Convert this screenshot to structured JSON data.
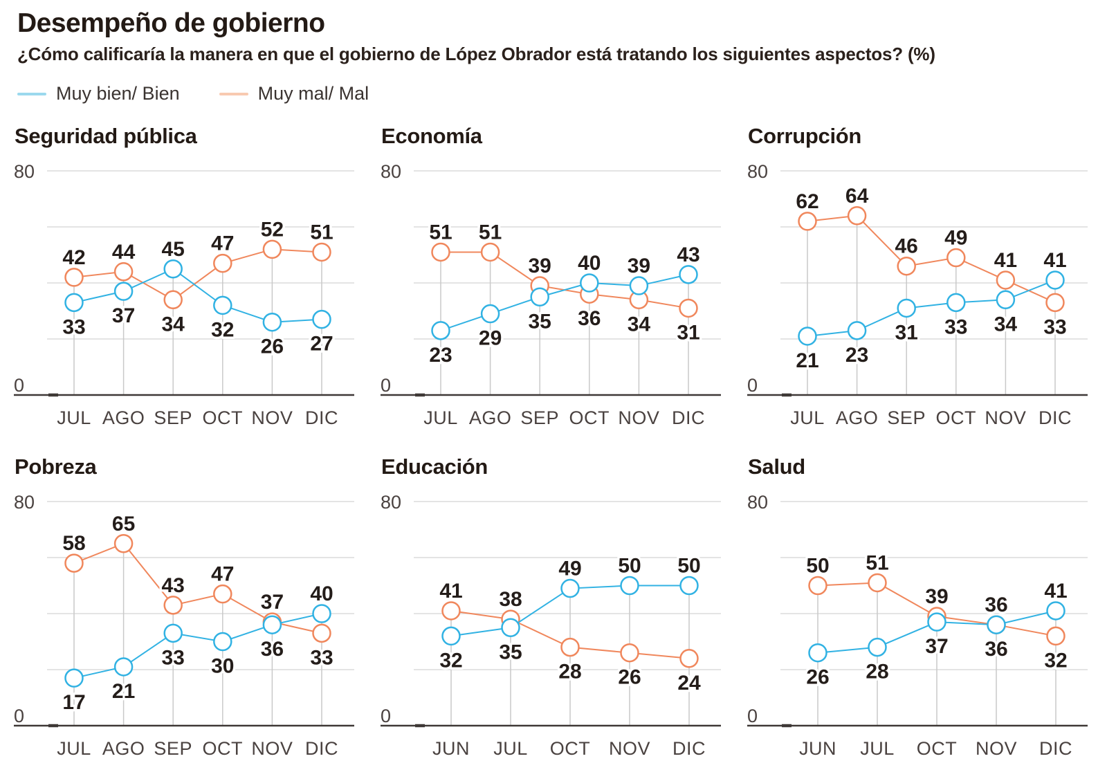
{
  "header": {
    "title": "Desempeño de gobierno",
    "subtitle": "¿Cómo calificaría la manera en que el gobierno de López Obrador está tratando los siguientes aspectos? (%)"
  },
  "legend": {
    "position": "top-left",
    "items": [
      {
        "label": "Muy bien/ Bien",
        "series": "bien",
        "color": "#9bd9ee"
      },
      {
        "label": "Muy mal/ Mal",
        "series": "mal",
        "color": "#f8cab1"
      }
    ]
  },
  "colors": {
    "bien": "#31b2e3",
    "mal": "#f0875c",
    "gridline": "#dcdcdc",
    "stem": "#c9c9c9",
    "axis": "#3e3836",
    "label": "#241d1a",
    "axis_label": "#4a4240",
    "title": "#231a15"
  },
  "chart_data": [
    {
      "type": "line",
      "title": "Seguridad pública",
      "categories": [
        "JUL",
        "AGO",
        "SEP",
        "OCT",
        "NOV",
        "DIC"
      ],
      "series": [
        {
          "name": "Muy bien/ Bien",
          "key": "bien",
          "values": [
            33,
            37,
            45,
            32,
            26,
            27
          ]
        },
        {
          "name": "Muy mal/ Mal",
          "key": "mal",
          "values": [
            42,
            44,
            34,
            47,
            52,
            51
          ]
        }
      ],
      "ylim": [
        0,
        80
      ],
      "y_gridlines": [
        20,
        40,
        60,
        80
      ],
      "grid": true
    },
    {
      "type": "line",
      "title": "Economía",
      "categories": [
        "JUL",
        "AGO",
        "SEP",
        "OCT",
        "NOV",
        "DIC"
      ],
      "series": [
        {
          "name": "Muy bien/ Bien",
          "key": "bien",
          "values": [
            23,
            29,
            35,
            40,
            39,
            43
          ]
        },
        {
          "name": "Muy mal/ Mal",
          "key": "mal",
          "values": [
            51,
            51,
            39,
            36,
            34,
            31
          ]
        }
      ],
      "ylim": [
        0,
        80
      ],
      "y_gridlines": [
        20,
        40,
        60,
        80
      ],
      "grid": true
    },
    {
      "type": "line",
      "title": "Corrupción",
      "categories": [
        "JUL",
        "AGO",
        "SEP",
        "OCT",
        "NOV",
        "DIC"
      ],
      "series": [
        {
          "name": "Muy bien/ Bien",
          "key": "bien",
          "values": [
            21,
            23,
            31,
            33,
            34,
            41
          ]
        },
        {
          "name": "Muy mal/ Mal",
          "key": "mal",
          "values": [
            62,
            64,
            46,
            49,
            41,
            33
          ]
        }
      ],
      "ylim": [
        0,
        80
      ],
      "y_gridlines": [
        20,
        40,
        60,
        80
      ],
      "grid": true
    },
    {
      "type": "line",
      "title": "Pobreza",
      "categories": [
        "JUL",
        "AGO",
        "SEP",
        "OCT",
        "NOV",
        "DIC"
      ],
      "series": [
        {
          "name": "Muy bien/ Bien",
          "key": "bien",
          "values": [
            17,
            21,
            33,
            30,
            36,
            40
          ]
        },
        {
          "name": "Muy mal/ Mal",
          "key": "mal",
          "values": [
            58,
            65,
            43,
            47,
            37,
            33
          ]
        }
      ],
      "ylim": [
        0,
        80
      ],
      "y_gridlines": [
        20,
        40,
        60,
        80
      ],
      "grid": true
    },
    {
      "type": "line",
      "title": "Educación",
      "categories": [
        "JUN",
        "JUL",
        "OCT",
        "NOV",
        "DIC"
      ],
      "series": [
        {
          "name": "Muy bien/ Bien",
          "key": "bien",
          "values": [
            32,
            35,
            49,
            50,
            50
          ]
        },
        {
          "name": "Muy mal/ Mal",
          "key": "mal",
          "values": [
            41,
            38,
            28,
            26,
            24
          ]
        }
      ],
      "ylim": [
        0,
        80
      ],
      "y_gridlines": [
        20,
        40,
        60,
        80
      ],
      "grid": true
    },
    {
      "type": "line",
      "title": "Salud",
      "categories": [
        "JUN",
        "JUL",
        "OCT",
        "NOV",
        "DIC"
      ],
      "series": [
        {
          "name": "Muy bien/ Bien",
          "key": "bien",
          "values": [
            26,
            28,
            37,
            36,
            41
          ]
        },
        {
          "name": "Muy mal/ Mal",
          "key": "mal",
          "values": [
            50,
            51,
            39,
            36,
            32
          ]
        }
      ],
      "ylim": [
        0,
        80
      ],
      "y_gridlines": [
        20,
        40,
        60,
        80
      ],
      "grid": true
    }
  ]
}
